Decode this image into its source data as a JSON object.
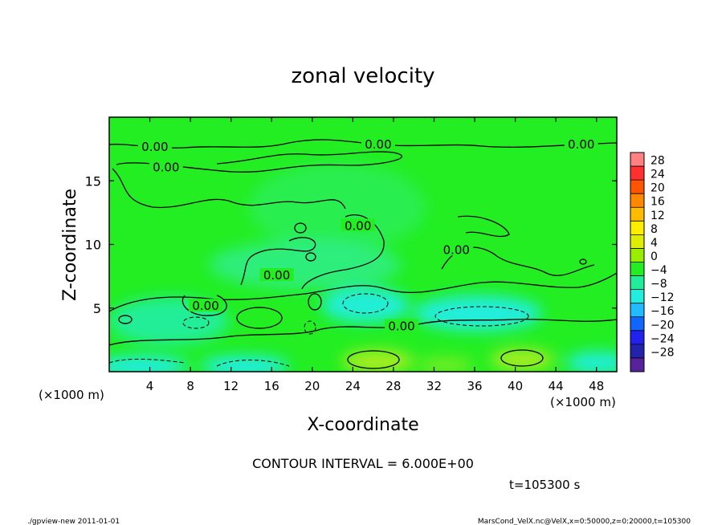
{
  "colors": {
    "background": "#ffffff",
    "text": "#000000",
    "contour": "#000000",
    "field_base": "#22ee22",
    "field_blue": "#22eec0",
    "field_cyan": "#22eee8",
    "field_yellow": "#aaee22"
  },
  "chart_data": {
    "type": "heatmap",
    "title": "zonal velocity",
    "xlabel": "X-coordinate",
    "ylabel": "Z-coordinate",
    "x_unit": "(×1000 m)",
    "xlim": [
      0,
      50
    ],
    "ylim": [
      0,
      20
    ],
    "x_ticks": [
      4,
      8,
      12,
      16,
      20,
      24,
      28,
      32,
      36,
      40,
      44,
      48
    ],
    "y_ticks": [
      5,
      10,
      15
    ],
    "contour_interval_text": "CONTOUR INTERVAL = 6.000E+00",
    "time_text": "t=105300 s",
    "contour_labels": [
      {
        "text": "0.00",
        "x": 4.5,
        "y": 17.6
      },
      {
        "text": "0.00",
        "x": 26.5,
        "y": 17.8
      },
      {
        "text": "0.00",
        "x": 46.5,
        "y": 17.8
      },
      {
        "text": "0.00",
        "x": 5.6,
        "y": 16.0
      },
      {
        "text": "0.00",
        "x": 24.5,
        "y": 11.4
      },
      {
        "text": "0.00",
        "x": 16.5,
        "y": 7.5
      },
      {
        "text": "0.00",
        "x": 34.2,
        "y": 9.5
      },
      {
        "text": "0.00",
        "x": 9.5,
        "y": 5.1
      },
      {
        "text": "0.00",
        "x": 28.8,
        "y": 3.5
      }
    ],
    "colorbar": {
      "levels": [
        28,
        24,
        20,
        16,
        12,
        8,
        4,
        0,
        -4,
        -8,
        -12,
        -16,
        -20,
        -24,
        -28
      ],
      "colors": [
        "#ff8080",
        "#ff3030",
        "#ff5500",
        "#ff8800",
        "#ffbb00",
        "#ffee00",
        "#ddee00",
        "#99ee00",
        "#22ee22",
        "#22ee99",
        "#22eedd",
        "#22bbff",
        "#1166ff",
        "#2222ee",
        "#2222aa",
        "#552299"
      ]
    }
  },
  "footer": {
    "left": "./gpview-new   2011-01-01",
    "right": "MarsCond_VelX.nc@VelX,x=0:50000,z=0:20000,t=105300"
  }
}
